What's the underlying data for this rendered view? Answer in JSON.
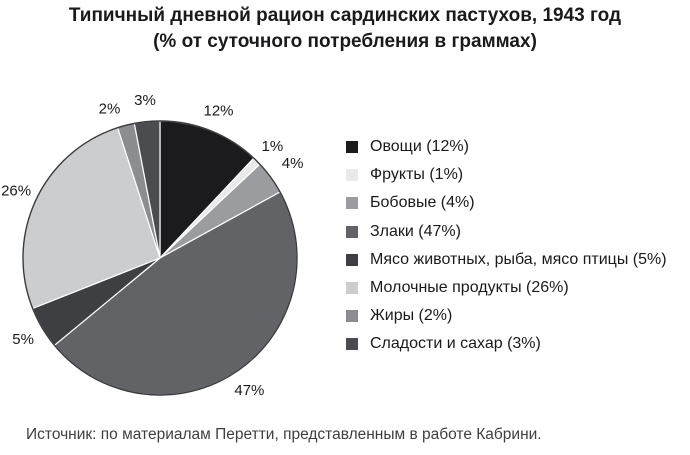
{
  "title": {
    "line1": "Типичный дневной рацион сардинских пастухов, 1943 год",
    "line2": "(% от суточного потребления в граммах)"
  },
  "source": "Источник: по материалам Перетти, представленным в работе Кабрини.",
  "chart_data": {
    "type": "pie",
    "title": "Типичный дневной рацион сардинских пастухов, 1943 год",
    "subtitle": "(% от суточного потребления в граммах)",
    "unit": "percent of daily intake in grams",
    "start_angle_deg": 0,
    "direction": "clockwise",
    "legend_position": "right",
    "outline_color": "#3a3a3d",
    "separator_color": "#ffffff",
    "label_color": "#1a1a1c",
    "slices": [
      {
        "label": "Овощи",
        "value": 12,
        "color": "#1b1b1d",
        "data_label": "12%"
      },
      {
        "label": "Фрукты",
        "value": 1,
        "color": "#e9e9e9",
        "data_label": "1%"
      },
      {
        "label": "Бобовые",
        "value": 4,
        "color": "#9a9c9f",
        "data_label": "4%"
      },
      {
        "label": "Злаки",
        "value": 47,
        "color": "#616367",
        "data_label": "47%"
      },
      {
        "label": "Мясо животных, рыба, мясо птицы",
        "value": 5,
        "color": "#3e3f42",
        "data_label": "5%"
      },
      {
        "label": "Молочные продукты",
        "value": 26,
        "color": "#cccdce",
        "data_label": "26%"
      },
      {
        "label": "Жиры",
        "value": 2,
        "color": "#8b8d90",
        "data_label": "2%"
      },
      {
        "label": "Сладости и сахар",
        "value": 3,
        "color": "#4b4c4f",
        "data_label": "3%"
      }
    ]
  }
}
